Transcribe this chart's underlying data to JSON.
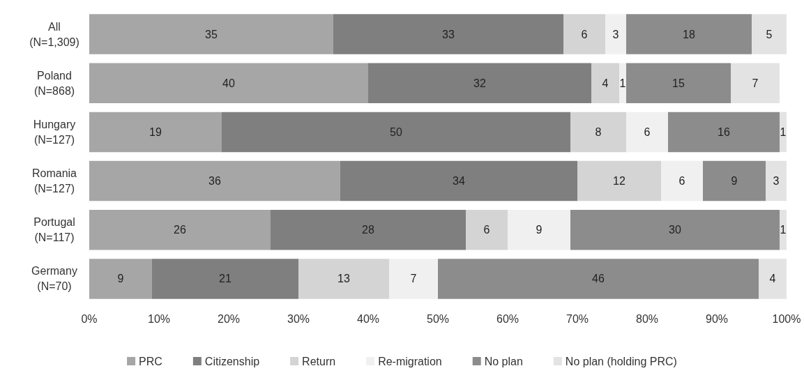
{
  "chart_data": {
    "type": "bar",
    "orientation": "horizontal",
    "stacked": true,
    "data_labels": true,
    "legend": "bottom",
    "grid": false,
    "categories": [
      "All\n(N=1,309)",
      "Poland\n(N=868)",
      "Hungary\n(N=127)",
      "Romania\n(N=127)",
      "Portugal\n(N=117)",
      "Germany\n(N=70)"
    ],
    "xlim": [
      0,
      100
    ],
    "xticks": [
      {
        "value": 0,
        "label": "0%"
      },
      {
        "value": 10,
        "label": "10%"
      },
      {
        "value": 20,
        "label": "20%"
      },
      {
        "value": 30,
        "label": "30%"
      },
      {
        "value": 40,
        "label": "40%"
      },
      {
        "value": 50,
        "label": "50%"
      },
      {
        "value": 60,
        "label": "60%"
      },
      {
        "value": 70,
        "label": "70%"
      },
      {
        "value": 80,
        "label": "80%"
      },
      {
        "value": 90,
        "label": "90%"
      },
      {
        "value": 100,
        "label": "100%"
      }
    ],
    "series": [
      {
        "name": "PRC",
        "color": "#a6a6a6",
        "values": [
          35,
          40,
          19,
          36,
          26,
          9
        ]
      },
      {
        "name": "Citizenship",
        "color": "#7f7f7f",
        "values": [
          33,
          32,
          50,
          34,
          28,
          21
        ]
      },
      {
        "name": "Return",
        "color": "#d4d4d4",
        "values": [
          6,
          4,
          8,
          12,
          6,
          13
        ]
      },
      {
        "name": "Re-migration",
        "color": "#f0f0f0",
        "values": [
          3,
          1,
          6,
          6,
          9,
          7
        ]
      },
      {
        "name": "No plan",
        "color": "#8c8c8c",
        "values": [
          18,
          15,
          16,
          9,
          30,
          46
        ]
      },
      {
        "name": "No plan (holding PRC)",
        "color": "#e3e3e3",
        "values": [
          5,
          7,
          1,
          3,
          1,
          4
        ]
      }
    ]
  }
}
